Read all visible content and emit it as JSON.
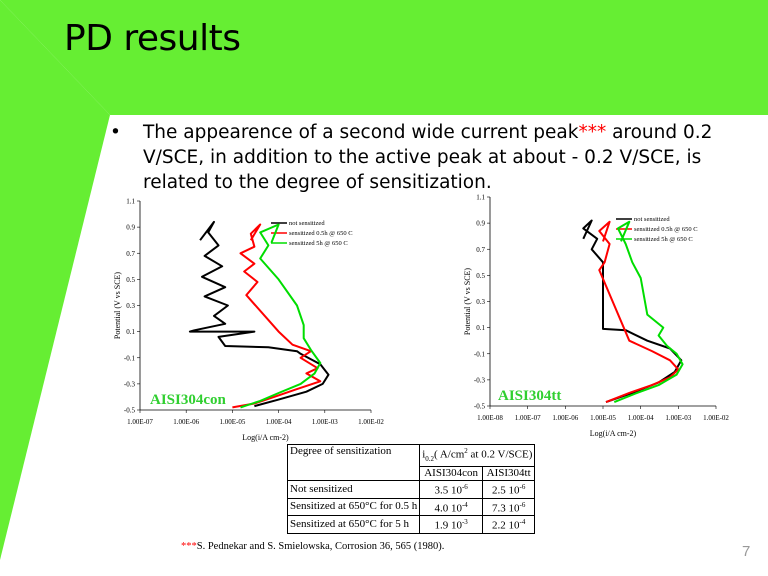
{
  "slide": {
    "title": "PD results",
    "bullet_marker": "•",
    "bullet_text_pre": "The appearence of a second wide current peak",
    "bullet_stars": "***",
    "bullet_text_post": " around 0.2 V/SCE, in addition to the active peak at about - 0.2 V/SCE, is related to the degree of sensitization.",
    "footnote_stars": "***",
    "footnote_text": "S. Pednekar and S. Smielowska, Corrosion 36, 565 (1980).",
    "page_number": "7",
    "colors": {
      "green": "#66ee33",
      "light_green": "#98f070",
      "alloy_label": "#30cf30"
    }
  },
  "chart_data": [
    {
      "type": "line",
      "alloy_label": "AISI304con",
      "xlabel": "Log(i/A cm-2)",
      "ylabel": "Potential (V vs SCE)",
      "x_scale": "log",
      "xlim": [
        1e-07,
        0.01
      ],
      "ylim": [
        -0.5,
        1.1
      ],
      "x_ticks": [
        "1.00E-07",
        "1.00E-06",
        "1.00E-05",
        "1.00E-04",
        "1.00E-03",
        "1.00E-02"
      ],
      "y_ticks": [
        "1.1",
        "0.9",
        "0.7",
        "0.5",
        "0.3",
        "0.1",
        "-0.1",
        "-0.3",
        "-0.5"
      ],
      "legend": "top-right",
      "series": [
        {
          "name": "not sensitized",
          "color": "#000000",
          "x": [
            2e-06,
            4e-06,
            3e-06,
            5e-06,
            2.5e-06,
            6e-06,
            2.2e-06,
            7e-06,
            2.5e-06,
            8e-06,
            4e-06,
            7e-06,
            1.5e-06,
            1.2e-06,
            3e-05,
            5e-06,
            7e-06,
            6e-05,
            0.00025,
            0.0003,
            0.0008,
            0.0012,
            0.0009,
            0.0004,
            0.0001,
            3e-05
          ],
          "y": [
            0.8,
            0.94,
            0.86,
            0.76,
            0.68,
            0.6,
            0.52,
            0.44,
            0.37,
            0.3,
            0.22,
            0.16,
            0.11,
            0.1,
            0.1,
            0.06,
            -0.01,
            -0.02,
            -0.05,
            -0.07,
            -0.15,
            -0.23,
            -0.3,
            -0.36,
            -0.42,
            -0.47
          ]
        },
        {
          "name": "sensitized 0.5h @ 650 C",
          "color": "#ff0000",
          "x": [
            2.5e-05,
            4e-05,
            2.5e-05,
            3e-05,
            1.5e-05,
            3e-05,
            1.8e-05,
            3.5e-05,
            2e-05,
            0.0001,
            0.0002,
            0.0005,
            0.0003,
            0.0007,
            0.0004,
            0.0008,
            0.00025,
            8e-05,
            3e-05,
            1e-05
          ],
          "y": [
            0.8,
            0.92,
            0.85,
            0.75,
            0.7,
            0.62,
            0.56,
            0.48,
            0.38,
            0.1,
            0.0,
            -0.05,
            -0.1,
            -0.18,
            -0.22,
            -0.28,
            -0.34,
            -0.4,
            -0.45,
            -0.48
          ]
        },
        {
          "name": "sensitized 5h @ 650 C",
          "color": "#00dd00",
          "x": [
            7e-05,
            0.0001,
            4e-05,
            6e-05,
            4e-05,
            0.0001,
            0.00025,
            0.00035,
            0.00035,
            0.0005,
            0.0008,
            0.0006,
            0.0003,
            0.0001,
            4e-05,
            1.5e-05
          ],
          "y": [
            0.78,
            0.92,
            0.86,
            0.76,
            0.66,
            0.5,
            0.3,
            0.15,
            0.05,
            -0.04,
            -0.14,
            -0.22,
            -0.3,
            -0.37,
            -0.43,
            -0.48
          ]
        }
      ]
    },
    {
      "type": "line",
      "alloy_label": "AISI304tt",
      "xlabel": "Log(i/A cm-2)",
      "ylabel": "Potential (V vs SCE)",
      "x_scale": "log",
      "xlim": [
        1e-08,
        0.01
      ],
      "ylim": [
        -0.5,
        1.1
      ],
      "x_ticks": [
        "1.00E-08",
        "1.00E-07",
        "1.00E-06",
        "1.00E-05",
        "1.00E-04",
        "1.00E-03",
        "1.00E-02"
      ],
      "y_ticks": [
        "1.1",
        "0.9",
        "0.7",
        "0.5",
        "0.3",
        "0.1",
        "-0.1",
        "-0.3",
        "-0.5"
      ],
      "legend": "top-right",
      "series": [
        {
          "name": "not sensitized",
          "color": "#000000",
          "x": [
            3e-06,
            5e-06,
            3e-06,
            7e-06,
            5e-06,
            1e-05,
            1e-05,
            1e-05,
            1e-05,
            4e-05,
            0.00015,
            0.0006,
            0.0012,
            0.0008,
            0.0003,
            6e-05,
            1.2e-05
          ],
          "y": [
            0.78,
            0.92,
            0.86,
            0.78,
            0.7,
            0.6,
            0.4,
            0.17,
            0.09,
            0.08,
            0.0,
            -0.06,
            -0.15,
            -0.24,
            -0.32,
            -0.4,
            -0.47
          ]
        },
        {
          "name": "sensitized 0.5h @ 650 C",
          "color": "#ff0000",
          "x": [
            1e-05,
            1.5e-05,
            8e-06,
            1.5e-05,
            1.1e-05,
            8e-06,
            5e-05,
            0.0002,
            0.0006,
            0.001,
            0.0006,
            0.0002,
            5e-05,
            1.2e-05
          ],
          "y": [
            0.76,
            0.91,
            0.84,
            0.74,
            0.6,
            0.54,
            0.0,
            -0.08,
            -0.15,
            -0.22,
            -0.28,
            -0.34,
            -0.4,
            -0.47
          ]
        },
        {
          "name": "sensitized 5h @ 650 C",
          "color": "#00dd00",
          "x": [
            3e-05,
            5e-05,
            2.5e-05,
            4e-05,
            6e-05,
            0.0001,
            0.00015,
            0.0004,
            0.0003,
            0.0005,
            0.0009,
            0.0013,
            0.0009,
            0.0003,
            8e-05,
            2e-05
          ],
          "y": [
            0.76,
            0.91,
            0.86,
            0.74,
            0.6,
            0.48,
            0.2,
            0.1,
            0.04,
            -0.04,
            -0.1,
            -0.18,
            -0.26,
            -0.34,
            -0.4,
            -0.47
          ]
        }
      ]
    }
  ],
  "sensitization_table": {
    "header_left": "Degree of sensitization",
    "header_right_pre": "i",
    "header_right_sub": "0.2",
    "header_right_post": "( A/cm",
    "header_right_sup": "2",
    "header_right_tail": " at 0.2 V/SCE)",
    "col_1": "AISI304con",
    "col_2": "AISI304tt",
    "rows": [
      {
        "label": "Not sensitized",
        "v1": "3.5 10",
        "e1": "-6",
        "v2": "2.5 10",
        "e2": "-6"
      },
      {
        "label": "Sensitized at 650°C for 0.5 h",
        "v1": "4.0 10",
        "e1": "-4",
        "v2": "7.3 10",
        "e2": "-6"
      },
      {
        "label": "Sensitized at 650°C for 5 h",
        "v1": "1.9 10",
        "e1": "-3",
        "v2": "2.2 10",
        "e2": "-4"
      }
    ]
  }
}
